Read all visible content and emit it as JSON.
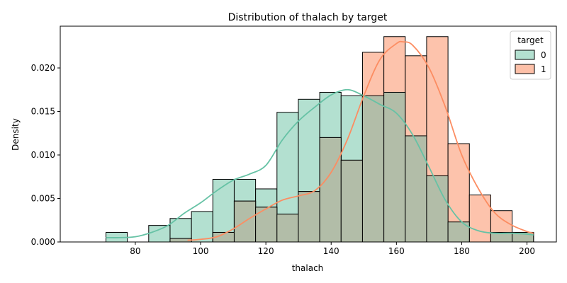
{
  "chart_data": {
    "type": "histogram",
    "title": "Distribution of thalach by target",
    "xlabel": "thalach",
    "ylabel": "Density",
    "xlim": [
      57,
      209
    ],
    "ylim": [
      0,
      0.0248
    ],
    "xticks": [
      80,
      100,
      120,
      140,
      160,
      180,
      200
    ],
    "yticks": [
      0.0,
      0.005,
      0.01,
      0.015,
      0.02
    ],
    "ytick_labels": [
      "0.000",
      "0.005",
      "0.010",
      "0.015",
      "0.020"
    ],
    "bin_edges": [
      71,
      77.55,
      84.1,
      90.65,
      97.2,
      103.75,
      110.3,
      116.85,
      123.4,
      129.95,
      136.5,
      143.05,
      149.6,
      156.15,
      162.7,
      169.25,
      175.8,
      182.35,
      188.9,
      195.45,
      202
    ],
    "legend": {
      "title": "target",
      "position": "top-right"
    },
    "grid": false,
    "series": [
      {
        "name": "0",
        "fill": "#b3e0d0",
        "line": "#66c2a5",
        "values": [
          0.0011,
          0.0,
          0.0019,
          0.0027,
          0.0035,
          0.0072,
          0.0072,
          0.0061,
          0.0149,
          0.0164,
          0.0172,
          0.0168,
          0.0168,
          0.0172,
          0.0122,
          0.0076,
          0.0023,
          0.0,
          0.0011,
          0.0011
        ],
        "kde_x": [
          71,
          75,
          80,
          85,
          90,
          95,
          100,
          105,
          110,
          115,
          120,
          125,
          130,
          135,
          140,
          145,
          150,
          155,
          160,
          165,
          170,
          175,
          180,
          185,
          190,
          195,
          200,
          202
        ],
        "kde_y": [
          0.0005,
          0.0005,
          0.0006,
          0.0011,
          0.0019,
          0.0033,
          0.0045,
          0.0059,
          0.0071,
          0.0078,
          0.0088,
          0.0117,
          0.0139,
          0.0155,
          0.0169,
          0.0175,
          0.0168,
          0.0158,
          0.0148,
          0.0123,
          0.0086,
          0.0048,
          0.0023,
          0.0013,
          0.001,
          0.001,
          0.0009,
          0.0008
        ]
      },
      {
        "name": "1",
        "fill": "#fdc0a8",
        "line": "#fc8d62",
        "values": [
          0.0,
          0.0,
          0.0,
          0.0004,
          0.0,
          0.0011,
          0.0047,
          0.004,
          0.0032,
          0.0058,
          0.012,
          0.0094,
          0.0218,
          0.0236,
          0.0214,
          0.0236,
          0.0113,
          0.0054,
          0.0036,
          0.0011
        ],
        "kde_x": [
          96,
          100,
          105,
          110,
          115,
          120,
          125,
          130,
          135,
          140,
          145,
          150,
          155,
          160,
          162,
          165,
          170,
          175,
          180,
          185,
          190,
          195,
          200,
          202
        ],
        "kde_y": [
          0.0002,
          0.0003,
          0.0006,
          0.0015,
          0.0027,
          0.0038,
          0.0048,
          0.0053,
          0.0059,
          0.008,
          0.0118,
          0.0168,
          0.021,
          0.0228,
          0.023,
          0.0226,
          0.02,
          0.0155,
          0.01,
          0.0062,
          0.0034,
          0.002,
          0.0012,
          0.001
        ]
      }
    ]
  }
}
